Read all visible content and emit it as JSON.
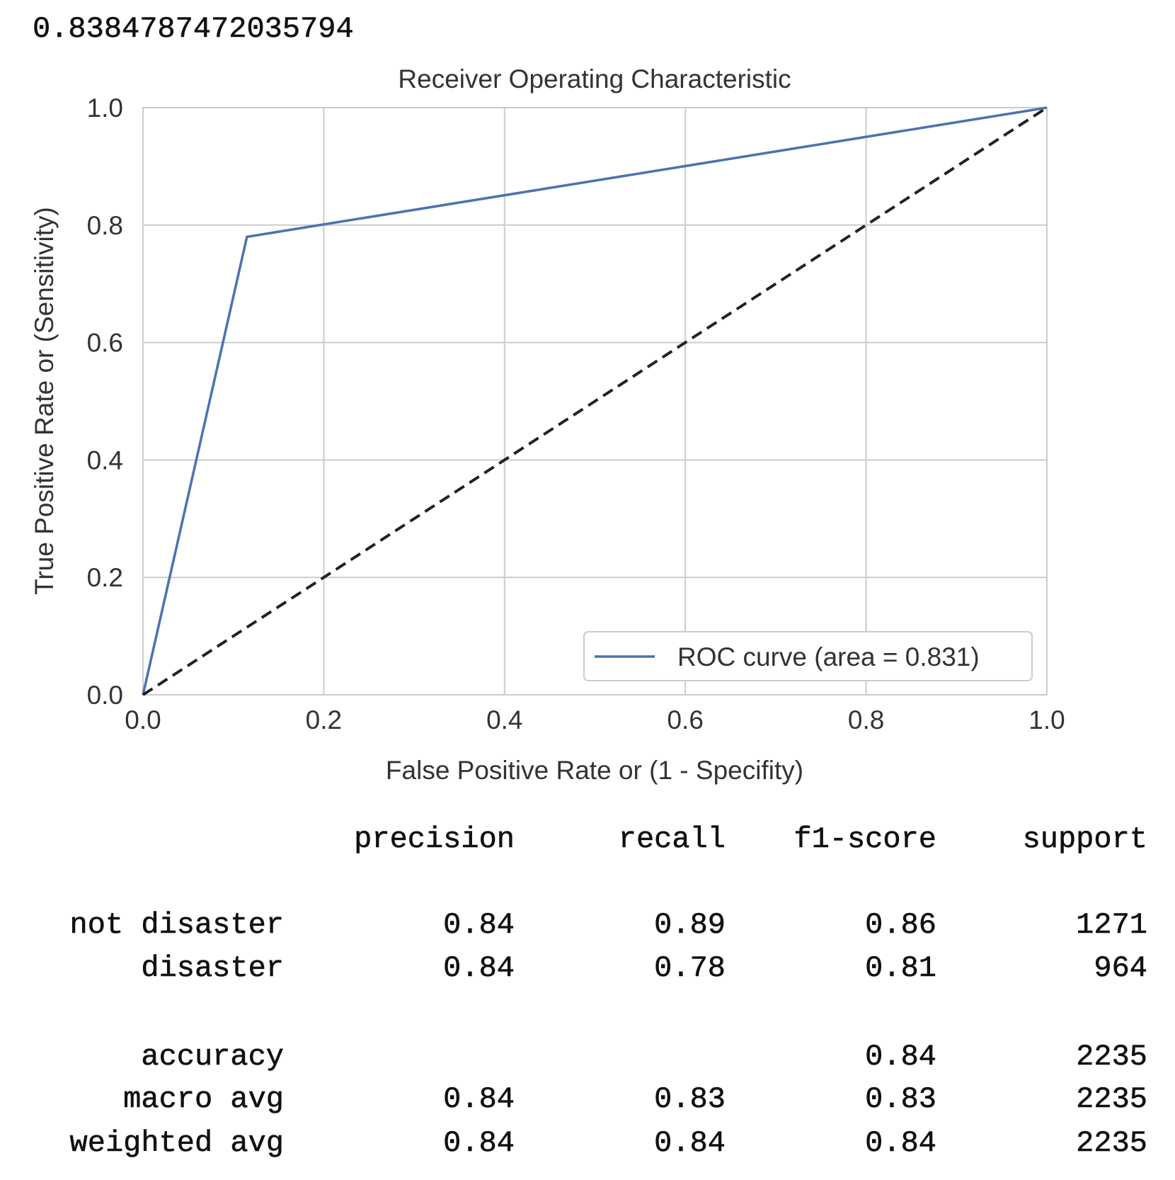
{
  "printed_value": "0.8384787472035794",
  "chart_data": {
    "type": "line",
    "title": "Receiver Operating Characteristic",
    "x_label": "False Positive Rate or (1 - Specifity)",
    "y_label": "True Positive Rate or (Sensitivity)",
    "series": [
      {
        "name": "ROC curve (area = 0.831)",
        "color": "#4c72b0",
        "x": [
          0,
          0.115,
          1
        ],
        "values": [
          0,
          0.78,
          1
        ]
      },
      {
        "color": "#222222",
        "dash": true,
        "x": [
          0,
          1
        ],
        "values": [
          0,
          1
        ]
      }
    ],
    "xlim": [
      0,
      1
    ],
    "ylim": [
      0,
      1
    ],
    "xticks": [
      {
        "value": 0,
        "label": "0.0"
      },
      0.2,
      0.4,
      0.6,
      0.8,
      {
        "value": 1,
        "label": "1.0"
      }
    ],
    "yticks": [
      {
        "value": 0,
        "label": "0.0"
      },
      0.2,
      0.4,
      0.6,
      0.8,
      {
        "value": 1,
        "label": "1.0"
      }
    ],
    "grid": true,
    "legend": "lower right"
  },
  "report": {
    "header": [
      "precision",
      "recall",
      "f1-score",
      "support"
    ],
    "rows": [
      [
        "not disaster",
        "0.84",
        "0.89",
        "0.86",
        "1271"
      ],
      [
        "disaster",
        "0.84",
        "0.78",
        "0.81",
        "964"
      ],
      [
        "accuracy",
        null,
        null,
        "0.84",
        "2235"
      ],
      [
        "macro avg",
        "0.84",
        "0.83",
        "0.83",
        "2235"
      ],
      [
        "weighted avg",
        "0.84",
        "0.84",
        "0.84",
        "2235"
      ]
    ]
  }
}
